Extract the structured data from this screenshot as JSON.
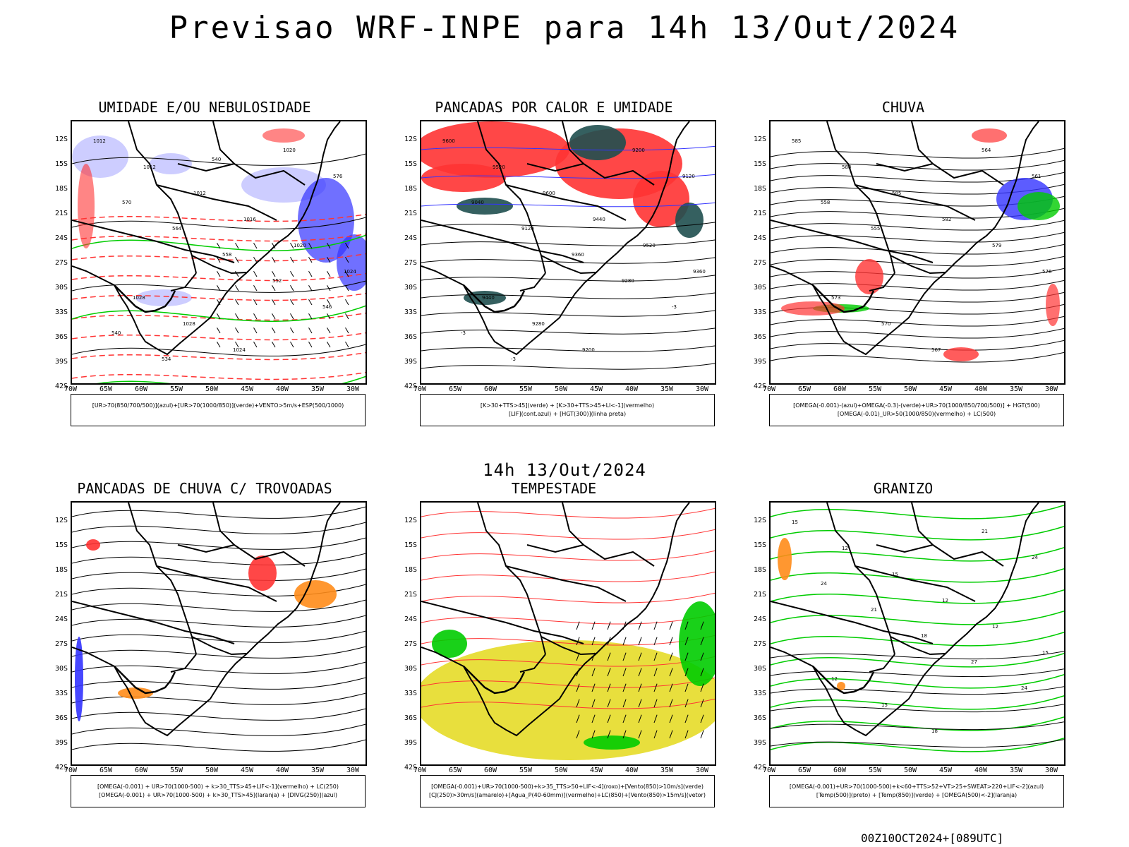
{
  "title": "Previsao WRF-INPE  para 14h 13/Out/2024",
  "mid_title": "14h 13/Out/2024",
  "run_id": "00Z10OCT2024+[089UTC]",
  "lat_labels": [
    "12S",
    "15S",
    "18S",
    "21S",
    "24S",
    "27S",
    "30S",
    "33S",
    "36S",
    "39S",
    "42S"
  ],
  "lon_labels": [
    "70W",
    "65W",
    "60W",
    "55W",
    "50W",
    "45W",
    "40W",
    "35W",
    "30W"
  ],
  "colors": {
    "blue": "#3333ff",
    "lightblue": "#c8c8ff",
    "green": "#00cc00",
    "red": "#ff3333",
    "darkgreen": "#1f4f4f",
    "orange": "#ff8c1a",
    "yellow": "#e6dc28",
    "purple": "#b000b0"
  },
  "panels": [
    {
      "title": "UMIDADE E/OU NEBULOSIDADE",
      "legend": [
        "[UR>70(850/700/500)](azul)+[UR>70(1000/850)](verde)+VENTO>5m/s+ESP(500/1000)"
      ],
      "contour_labels": [
        "1012",
        "1012",
        "1012",
        "1016",
        "1020",
        "1024",
        "1028",
        "1028",
        "1024",
        "1020",
        "576",
        "570",
        "564",
        "558",
        "552",
        "546",
        "540",
        "534",
        "540"
      ]
    },
    {
      "title": "PANCADAS POR CALOR E UMIDADE",
      "legend": [
        "[K>30+TTS>45](verde) + [K>30+TTS>45+LI<-1](vermelho)",
        "[LIF](cont.azul) + [HGT(300)](linha preta)"
      ],
      "contour_labels": [
        "9600",
        "9520",
        "9600",
        "9440",
        "9520",
        "9360",
        "9440",
        "9280",
        "9200",
        "9200",
        "9120",
        "9040",
        "9120",
        "9360",
        "9280",
        "-3",
        "-3",
        "-3"
      ]
    },
    {
      "title": "CHUVA",
      "legend": [
        "[OMEGA(-0.001)-(azul)+OMEGA(-0.3)-(verde)+UR>70(1000/850/700/500)] + HGT(500)",
        "[OMEGA(-0.01)_UR>50(1000/850)(vermelho) + LC(500)"
      ],
      "contour_labels": [
        "585",
        "588",
        "585",
        "582",
        "579",
        "576",
        "573",
        "570",
        "567",
        "564",
        "561",
        "558",
        "555"
      ]
    },
    {
      "title": "PANCADAS DE CHUVA C/ TROVOADAS",
      "legend": [
        "[OMEGA(-0.001) + UR>70(1000-500) + k>30_TTS>45+LIF<-1](vermelho) + LC(250)",
        "[OMEGA(-0.001) + UR>70(1000-500) + k>30_TTS>45](laranja) + [DIVG(250)](azul)"
      ],
      "contour_labels": []
    },
    {
      "title": "TEMPESTADE",
      "legend": [
        "[OMEGA(-0.001)+UR>70(1000-500)+k>35_TTS>50+LIF<-4](roxo)+[Vento(850)>10m/s](verde)",
        "[CJ(250)>30m/s](amarelo)+[Agua_P(40-60mm)](vermelho)+LC(850)+[Vento(850)>15m/s](vetor)"
      ],
      "contour_labels": []
    },
    {
      "title": "GRANIZO",
      "legend": [
        "[OMEGA(-0.001)+UR>70(1000-500)+k<60+TTS>52+VT>25+SWEAT>220+LIF<-2](azul)",
        "[Temp(500)](preto) + [Temp(850)](verde) + [OMEGA(500)<-2](laranja)"
      ],
      "contour_labels": [
        "15",
        "12",
        "15",
        "12",
        "12",
        "15",
        "12",
        "15",
        "18",
        "21",
        "24",
        "24",
        "21",
        "18",
        "27",
        "24"
      ]
    }
  ]
}
